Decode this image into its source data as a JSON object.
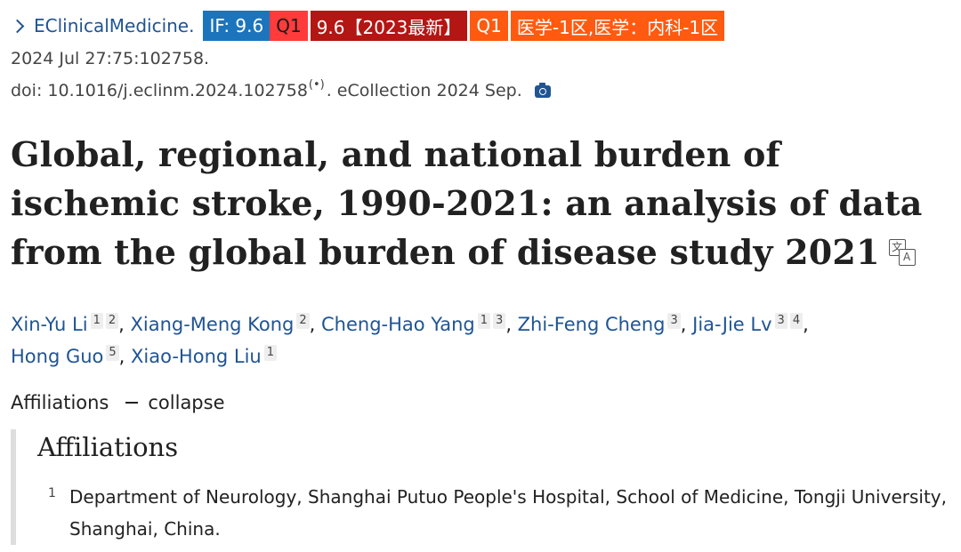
{
  "journal": {
    "name": "EClinicalMedicine.",
    "badges": {
      "impact_factor": "IF: 9.6",
      "quartile": "Q1",
      "rank": "9.6【2023最新】",
      "quartile2": "Q1",
      "category": "医学-1区,医学：内科-1区"
    }
  },
  "citation": {
    "date": "2024 Jul 27:75:102758.",
    "doi": "doi: 10.1016/j.eclinm.2024.102758",
    "radio_glyph": "(•)",
    "ecollection": ". eCollection 2024 Sep."
  },
  "article": {
    "title": "Global, regional, and national burden of ischemic stroke, 1990-2021: an analysis of data from the global burden of disease study 2021",
    "translate_glyph_a": "文",
    "translate_glyph_b": "A"
  },
  "authors": [
    {
      "name": "Xin-Yu Li",
      "affs": [
        "1",
        "2"
      ]
    },
    {
      "name": "Xiang-Meng Kong",
      "affs": [
        "2"
      ]
    },
    {
      "name": "Cheng-Hao Yang",
      "affs": [
        "1",
        "3"
      ]
    },
    {
      "name": "Zhi-Feng Cheng",
      "affs": [
        "3"
      ]
    },
    {
      "name": "Jia-Jie Lv",
      "affs": [
        "3",
        "4"
      ]
    },
    {
      "name": "Hong Guo",
      "affs": [
        "5"
      ]
    },
    {
      "name": "Xiao-Hong Liu",
      "affs": [
        "1"
      ]
    }
  ],
  "affiliations": {
    "toggle_label": "Affiliations",
    "toggle_action": "collapse",
    "heading": "Affiliations",
    "items": [
      {
        "num": "1",
        "text": "Department of Neurology, Shanghai Putuo People's Hospital, School of Medicine, Tongji University, Shanghai, China."
      }
    ]
  },
  "colors": {
    "link": "#205493",
    "if_badge": "#1c75bc",
    "q1_badge": "#ff3b3b",
    "rank_badge": "#b41613",
    "category_badge": "#ff5a10"
  }
}
